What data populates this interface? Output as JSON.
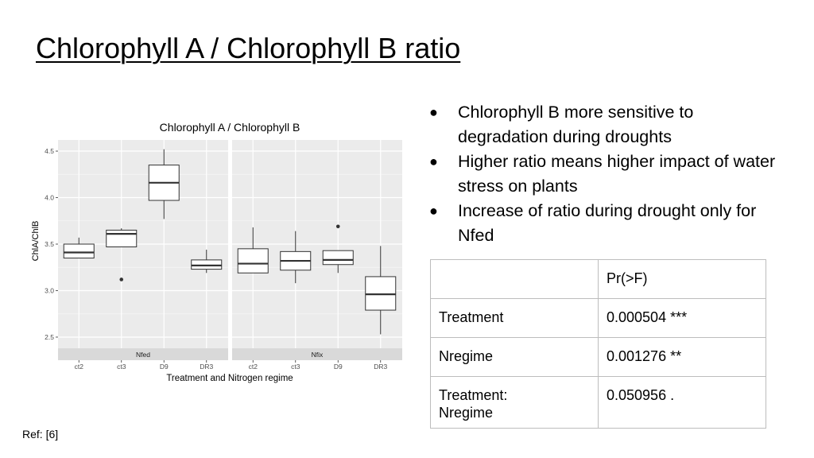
{
  "slide": {
    "title": "Chlorophyll A / Chlorophyll B ratio",
    "ref": "Ref: [6]"
  },
  "bullets": [
    "Chlorophyll B more sensitive to degradation during droughts",
    "Higher ratio means higher impact of water stress on plants",
    "Increase of ratio during drought only for Nfed"
  ],
  "bullet_glyph": "●",
  "table": {
    "header": [
      "",
      "Pr(>F)"
    ],
    "rows": [
      [
        "Treatment",
        "0.000504 ***"
      ],
      [
        "Nregime",
        "0.001276 **"
      ],
      [
        "Treatment:\nNregime",
        "0.050956 ."
      ]
    ]
  },
  "chart_data": {
    "type": "boxplot",
    "title": "Chlorophyll A / Chlorophyll B",
    "xlabel": "Treatment and Nitrogen regime",
    "ylabel": "ChlA/ChlB",
    "ylim": [
      2.38,
      4.62
    ],
    "yticks": [
      2.5,
      3.0,
      3.5,
      4.0,
      4.5
    ],
    "ytick_labels": [
      "2.5",
      "3.0",
      "3.5",
      "4.0",
      "4.5"
    ],
    "grid": true,
    "panel_background": "#ebebeb",
    "strip_background": "#d9d9d9",
    "box_fill": "#ffffff",
    "box_stroke": "#333333",
    "panels": [
      {
        "strip": "Nfed",
        "categories": [
          "ct2",
          "ct3",
          "D9",
          "DR3"
        ],
        "boxes": [
          {
            "lower_whisker": 3.35,
            "q1": 3.35,
            "median": 3.41,
            "q3": 3.5,
            "upper_whisker": 3.57,
            "outliers": []
          },
          {
            "lower_whisker": 3.47,
            "q1": 3.47,
            "median": 3.61,
            "q3": 3.65,
            "upper_whisker": 3.67,
            "outliers": [
              3.12
            ]
          },
          {
            "lower_whisker": 3.77,
            "q1": 3.97,
            "median": 4.16,
            "q3": 4.35,
            "upper_whisker": 4.52,
            "outliers": []
          },
          {
            "lower_whisker": 3.19,
            "q1": 3.23,
            "median": 3.27,
            "q3": 3.33,
            "upper_whisker": 3.44,
            "outliers": []
          }
        ]
      },
      {
        "strip": "Nfix",
        "categories": [
          "ct2",
          "ct3",
          "D9",
          "DR3"
        ],
        "boxes": [
          {
            "lower_whisker": 3.19,
            "q1": 3.19,
            "median": 3.29,
            "q3": 3.45,
            "upper_whisker": 3.68,
            "outliers": []
          },
          {
            "lower_whisker": 3.08,
            "q1": 3.22,
            "median": 3.32,
            "q3": 3.42,
            "upper_whisker": 3.64,
            "outliers": []
          },
          {
            "lower_whisker": 3.19,
            "q1": 3.28,
            "median": 3.33,
            "q3": 3.43,
            "upper_whisker": 3.43,
            "outliers": [
              3.69
            ]
          },
          {
            "lower_whisker": 2.53,
            "q1": 2.79,
            "median": 2.96,
            "q3": 3.15,
            "upper_whisker": 3.48,
            "outliers": []
          }
        ]
      }
    ]
  }
}
